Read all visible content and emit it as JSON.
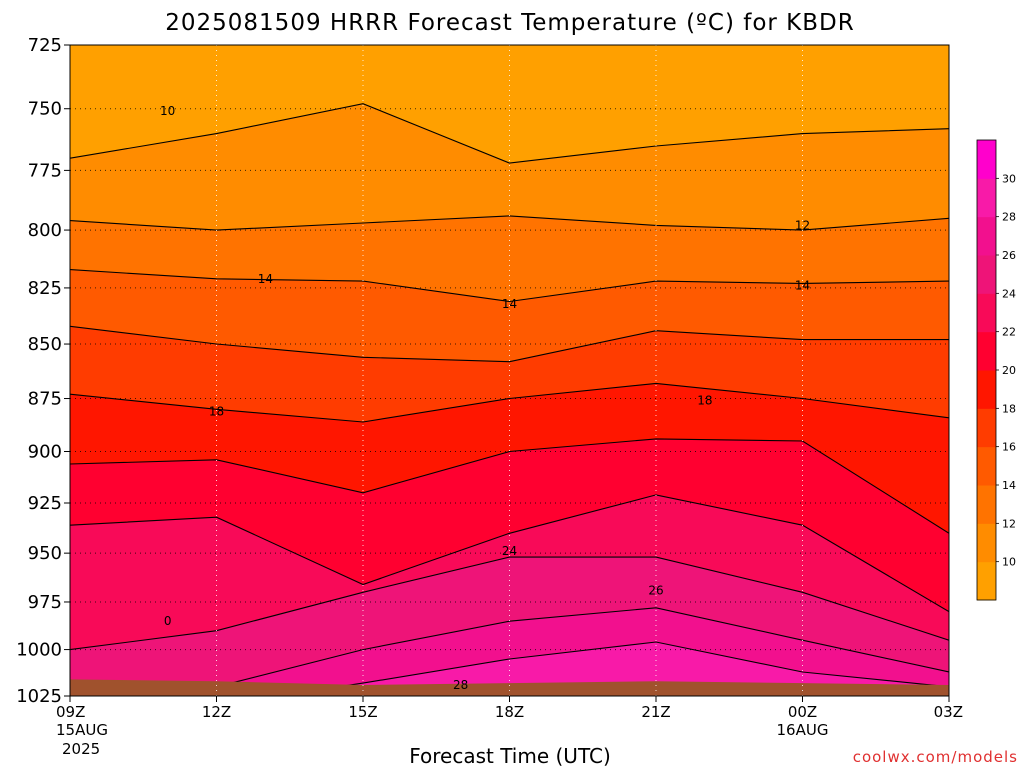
{
  "chart_data": {
    "type": "heatmap",
    "subtype": "filled-contour time-height cross section",
    "title": "2025081509 HRRR Forecast Temperature (ºC) for KBDR",
    "xlabel": "Forecast Time (UTC)",
    "ylabel": "",
    "credit": "coolwx.com/models",
    "x": [
      9,
      12,
      15,
      18,
      21,
      24,
      27
    ],
    "x_ticks": [
      {
        "h": 9,
        "label": "09Z",
        "sub1": "15AUG",
        "sub2": "2025"
      },
      {
        "h": 12,
        "label": "12Z",
        "sub1": "",
        "sub2": ""
      },
      {
        "h": 15,
        "label": "15Z",
        "sub1": "",
        "sub2": ""
      },
      {
        "h": 18,
        "label": "18Z",
        "sub1": "",
        "sub2": ""
      },
      {
        "h": 21,
        "label": "21Z",
        "sub1": "",
        "sub2": ""
      },
      {
        "h": 24,
        "label": "00Z",
        "sub1": "16AUG",
        "sub2": ""
      },
      {
        "h": 27,
        "label": "03Z",
        "sub1": "",
        "sub2": ""
      }
    ],
    "xlim": [
      9,
      27
    ],
    "y_ticks": [
      725,
      750,
      775,
      800,
      825,
      850,
      875,
      900,
      925,
      950,
      975,
      1000,
      1025
    ],
    "ylim": [
      725,
      1025
    ],
    "y_scale": "log-pressure (inverted)",
    "grid": true,
    "surface_pressure": [
      1016,
      1017,
      1019,
      1018,
      1017,
      1018,
      1019
    ],
    "contour_levels": [
      8,
      10,
      12,
      14,
      16,
      18,
      20,
      22,
      24,
      26,
      28,
      30,
      32
    ],
    "colorbar": {
      "ticks": [
        10,
        12,
        14,
        16,
        18,
        20,
        22,
        24,
        26,
        28,
        30
      ],
      "colors": [
        "#ffa000",
        "#ff8c00",
        "#ff7300",
        "#ff5a00",
        "#ff3c00",
        "#ff1600",
        "#ff0030",
        "#f80a58",
        "#ee1478",
        "#f2108e",
        "#f81aa8",
        "#ff00cc"
      ]
    },
    "series": [
      {
        "level": 10,
        "pressure": [
          770,
          760,
          748,
          772,
          765,
          760,
          758
        ]
      },
      {
        "level": 12,
        "pressure": [
          796,
          800,
          797,
          794,
          798,
          800,
          795
        ]
      },
      {
        "level": 14,
        "pressure": [
          817,
          821,
          822,
          831,
          822,
          823,
          822
        ]
      },
      {
        "level": 16,
        "pressure": [
          842,
          850,
          856,
          858,
          844,
          848,
          848
        ]
      },
      {
        "level": 18,
        "pressure": [
          873,
          880,
          886,
          875,
          868,
          875,
          884
        ]
      },
      {
        "level": 20,
        "pressure": [
          906,
          904,
          920,
          900,
          894,
          895,
          940
        ]
      },
      {
        "level": 22,
        "pressure": [
          936,
          932,
          966,
          940,
          921,
          936,
          980
        ]
      },
      {
        "level": 24,
        "pressure": [
          1000,
          990,
          970,
          952,
          952,
          970,
          995
        ]
      },
      {
        "level": 26,
        "pressure": [
          1020,
          1020,
          1000,
          985,
          978,
          995,
          1012
        ]
      },
      {
        "level": 28,
        "pressure": [
          1030,
          1030,
          1018,
          1005,
          996,
          1012,
          1020
        ]
      }
    ],
    "contour_labels": [
      {
        "text": "10",
        "h": 11.0,
        "p": 751
      },
      {
        "text": "12",
        "h": 24.0,
        "p": 798
      },
      {
        "text": "14",
        "h": 13.0,
        "p": 821
      },
      {
        "text": "14",
        "h": 18.0,
        "p": 832
      },
      {
        "text": "14",
        "h": 24.0,
        "p": 824
      },
      {
        "text": "18",
        "h": 12.0,
        "p": 881
      },
      {
        "text": "18",
        "h": 22.0,
        "p": 876
      },
      {
        "text": "24",
        "h": 18.0,
        "p": 949
      },
      {
        "text": "26",
        "h": 21.0,
        "p": 969
      },
      {
        "text": "28",
        "h": 17.0,
        "p": 1019
      },
      {
        "text": "0",
        "h": 11.0,
        "p": 985
      }
    ]
  }
}
